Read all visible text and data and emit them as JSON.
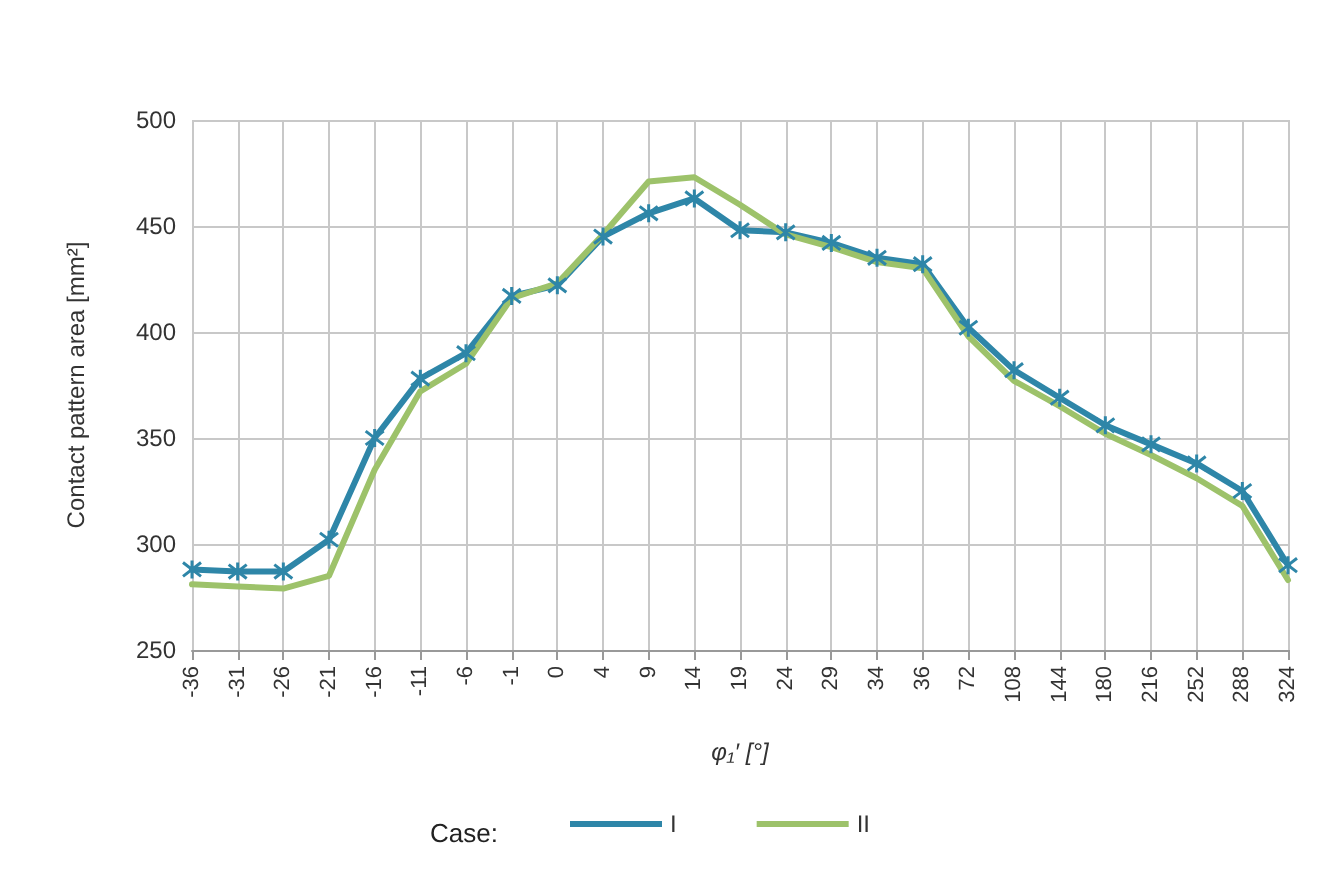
{
  "chart_data": {
    "type": "line",
    "xlabel": "φ₁′ [°]",
    "ylabel": "Contact pattern area [mm²]",
    "legend_title": "Case:",
    "categories": [
      "-36",
      "-31",
      "-26",
      "-21",
      "-16",
      "-11",
      "-6",
      "-1",
      "0",
      "4",
      "9",
      "14",
      "19",
      "24",
      "29",
      "34",
      "36",
      "72",
      "108",
      "144",
      "180",
      "216",
      "252",
      "288",
      "324"
    ],
    "series": [
      {
        "name": "I",
        "color": "#2e86a8",
        "marker": "cross",
        "values": [
          288,
          287,
          287,
          302,
          350,
          378,
          390,
          417,
          422,
          445,
          456,
          463,
          448,
          447,
          442,
          435,
          432,
          402,
          382,
          369,
          356,
          347,
          338,
          325,
          290
        ]
      },
      {
        "name": "II",
        "color": "#9dc26a",
        "marker": "none",
        "values": [
          281,
          280,
          279,
          285,
          335,
          372,
          385,
          416,
          423,
          446,
          471,
          473,
          460,
          446,
          440,
          433,
          430,
          398,
          377,
          365,
          352,
          342,
          331,
          318,
          283
        ]
      }
    ],
    "ylim": [
      250,
      500
    ],
    "yticks": [
      250,
      300,
      350,
      400,
      450,
      500
    ],
    "grid": true,
    "legend": "bottom"
  }
}
